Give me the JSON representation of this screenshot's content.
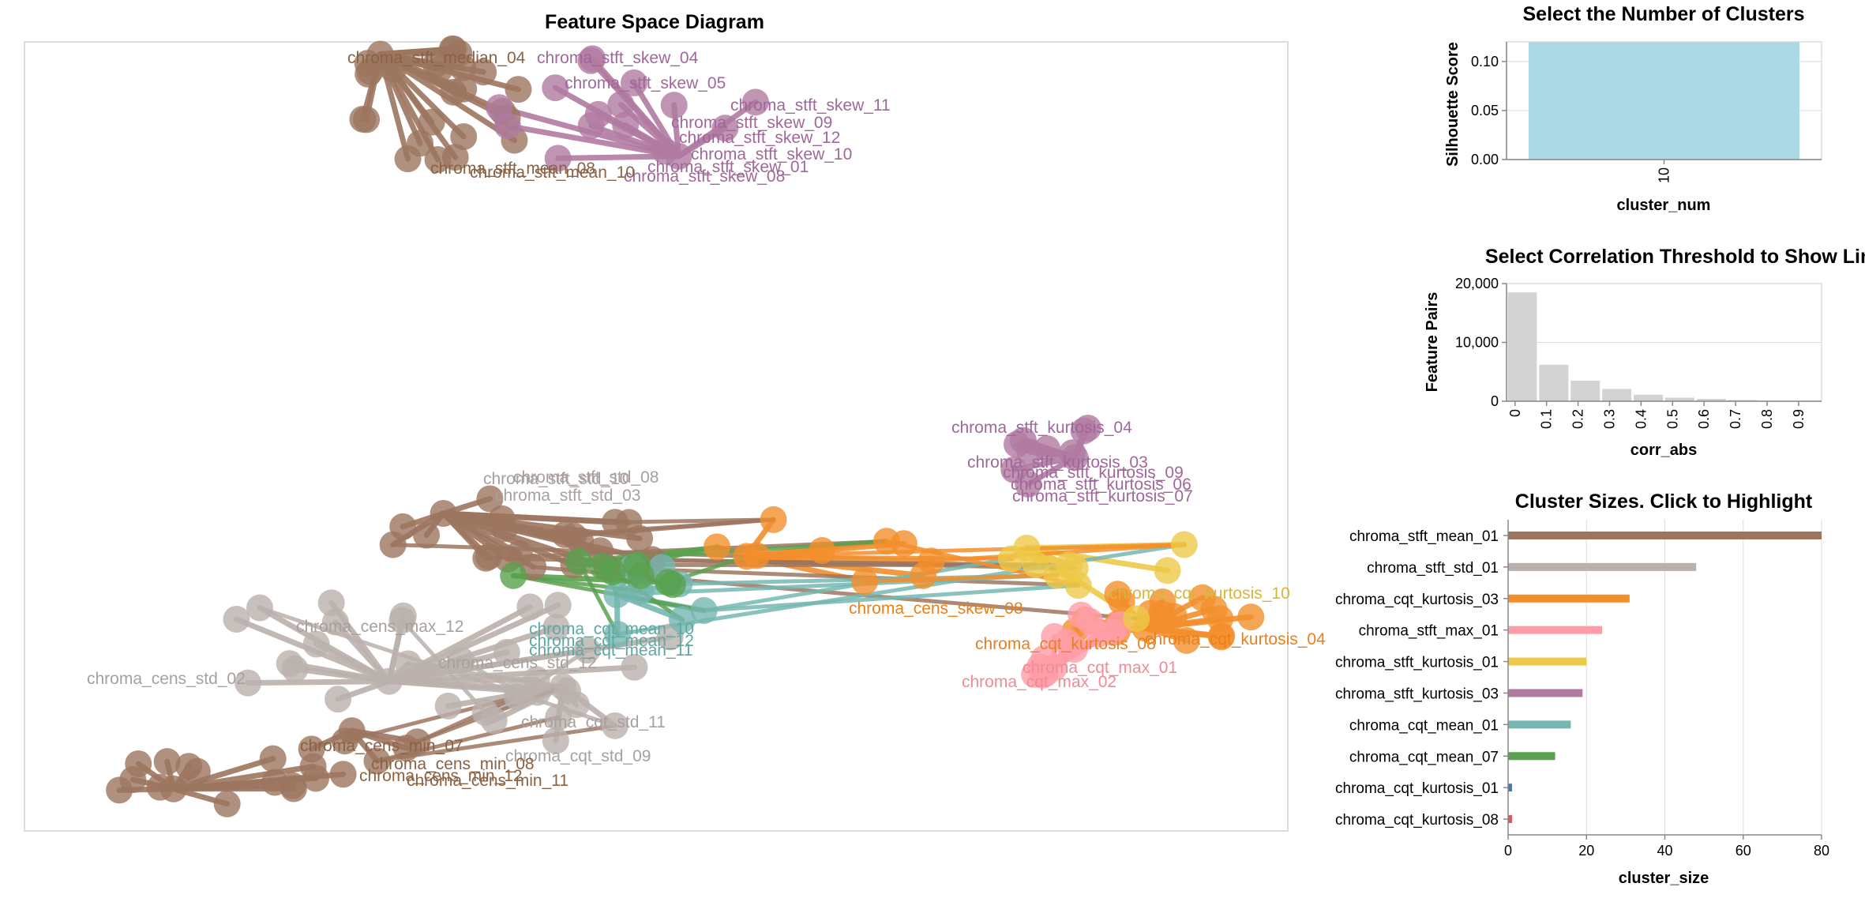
{
  "scatter": {
    "title": "Feature Space Diagram"
  },
  "silhouette": {
    "title": "Select the Number of Clusters",
    "ylabel": "Silhouette Score",
    "xlabel": "cluster_num"
  },
  "correlation": {
    "title": "Select Correlation Threshold to Show Lines",
    "ylabel": "Feature Pairs",
    "xlabel": "corr_abs"
  },
  "sizes": {
    "title": "Cluster Sizes. Click to Highlight",
    "xlabel": "cluster_size"
  },
  "chart_data": [
    {
      "type": "scatter",
      "title": "Feature Space Diagram",
      "labels": [
        {
          "text": "chroma_stft_median_04",
          "group": "brown"
        },
        {
          "text": "chroma_stft_skew_04",
          "group": "purple"
        },
        {
          "text": "chroma_stft_skew_05",
          "group": "purple"
        },
        {
          "text": "chroma_stft_skew_11",
          "group": "purple"
        },
        {
          "text": "chroma_stft_skew_09",
          "group": "purple"
        },
        {
          "text": "chroma_stft_skew_12",
          "group": "purple"
        },
        {
          "text": "chroma_stft_skew_10",
          "group": "purple"
        },
        {
          "text": "chroma_stft_skew_01",
          "group": "purple"
        },
        {
          "text": "chroma_stft_skew_08",
          "group": "purple"
        },
        {
          "text": "chroma_stft_mean_08",
          "group": "brown"
        },
        {
          "text": "chroma_stft_mean_10",
          "group": "brown"
        },
        {
          "text": "chroma_stft_kurtosis_04",
          "group": "purple"
        },
        {
          "text": "chroma_stft_kurtosis_03",
          "group": "purple"
        },
        {
          "text": "chroma_stft_kurtosis_09",
          "group": "purple"
        },
        {
          "text": "chroma_stft_kurtosis_06",
          "group": "purple"
        },
        {
          "text": "chroma_stft_kurtosis_07",
          "group": "purple"
        },
        {
          "text": "chroma_stft_std_08",
          "group": "gray"
        },
        {
          "text": "chroma_stft_std_10",
          "group": "gray"
        },
        {
          "text": "chroma_stft_std_03",
          "group": "gray"
        },
        {
          "text": "chroma_cens_max_12",
          "group": "gray"
        },
        {
          "text": "chroma_cens_std_12",
          "group": "gray"
        },
        {
          "text": "chroma_cens_std_02",
          "group": "gray"
        },
        {
          "text": "chroma_cqt_std_11",
          "group": "gray"
        },
        {
          "text": "chroma_cqt_std_09",
          "group": "gray"
        },
        {
          "text": "chroma_cens_min_07",
          "group": "brown"
        },
        {
          "text": "chroma_cens_min_08",
          "group": "brown"
        },
        {
          "text": "chroma_cens_min_11",
          "group": "brown"
        },
        {
          "text": "chroma_cens_min_12",
          "group": "brown"
        },
        {
          "text": "chroma_cqt_mean_10",
          "group": "teal"
        },
        {
          "text": "chroma_cqt_mean_12",
          "group": "teal"
        },
        {
          "text": "chroma_cqt_mean_11",
          "group": "teal"
        },
        {
          "text": "chroma_cens_skew_08",
          "group": "orange"
        },
        {
          "text": "chroma_cqt_kurtosis_08",
          "group": "orange"
        },
        {
          "text": "chroma_cqt_kurtosis_04",
          "group": "orange"
        },
        {
          "text": "chroma_cqt_kurtosis_10",
          "group": "yellow"
        },
        {
          "text": "chroma_cqt_max_02",
          "group": "pink"
        },
        {
          "text": "chroma_cqt_max_01",
          "group": "pink"
        }
      ]
    },
    {
      "type": "bar",
      "title": "Select the Number of Clusters",
      "xlabel": "cluster_num",
      "ylabel": "Silhouette Score",
      "categories": [
        "10"
      ],
      "values": [
        0.12
      ],
      "ylim": [
        0,
        0.12
      ],
      "yticks": [
        "0.00",
        "0.05",
        "0.10"
      ],
      "color": "#add8e6"
    },
    {
      "type": "bar",
      "title": "Select Correlation Threshold to Show Lines",
      "xlabel": "corr_abs",
      "ylabel": "Feature Pairs",
      "categories": [
        "0",
        "0.1",
        "0.2",
        "0.3",
        "0.4",
        "0.5",
        "0.6",
        "0.7",
        "0.8",
        "0.9"
      ],
      "values": [
        18500,
        6200,
        3500,
        2100,
        1100,
        600,
        400,
        200,
        100,
        50
      ],
      "ylim": [
        0,
        20000
      ],
      "yticks": [
        "0",
        "10,000",
        "20,000"
      ],
      "color": "#d3d3d3"
    },
    {
      "type": "bar",
      "orientation": "horizontal",
      "title": "Cluster Sizes. Click to Highlight",
      "xlabel": "cluster_size",
      "xlim": [
        0,
        80
      ],
      "xticks": [
        "0",
        "20",
        "40",
        "60",
        "80"
      ],
      "categories": [
        "chroma_stft_mean_01",
        "chroma_stft_std_01",
        "chroma_cqt_kurtosis_03",
        "chroma_stft_max_01",
        "chroma_stft_kurtosis_01",
        "chroma_stft_kurtosis_03",
        "chroma_cqt_mean_01",
        "chroma_cqt_mean_07",
        "chroma_cqt_kurtosis_01",
        "chroma_cqt_kurtosis_08"
      ],
      "values": [
        80,
        48,
        31,
        24,
        20,
        19,
        16,
        12,
        1,
        1
      ],
      "colors": [
        "#9c755f",
        "#bab0ac",
        "#f28e2c",
        "#ff9da7",
        "#edc949",
        "#b07aa1",
        "#76b7b2",
        "#59a14f",
        "#4e79a7",
        "#e15759"
      ]
    }
  ]
}
